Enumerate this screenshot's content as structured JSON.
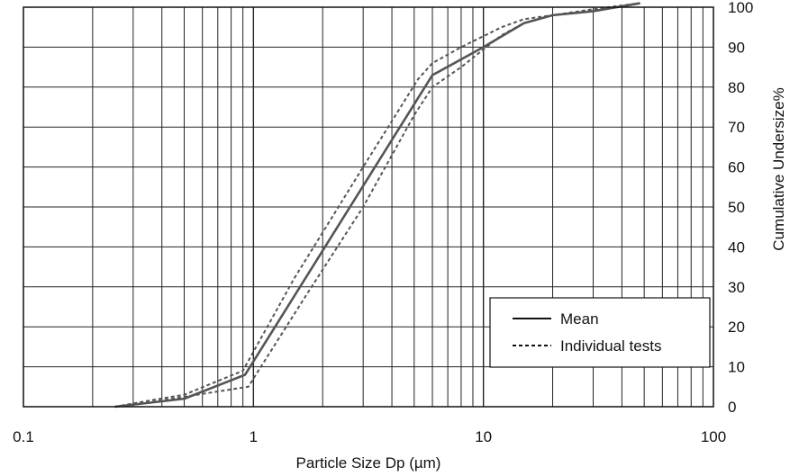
{
  "chart_data": {
    "type": "line",
    "x_scale": "log",
    "xlim": [
      0.1,
      100
    ],
    "ylim": [
      0,
      100
    ],
    "grid": true,
    "legend_position": "bottom-right",
    "title": "",
    "xlabel": "Particle Size  Dp (µm)",
    "ylabel": "Cumulative Undersize%",
    "x_tick_labels": [
      "0.1",
      "1",
      "10",
      "100"
    ],
    "x_tick_values": [
      0.1,
      1,
      10,
      100
    ],
    "y_tick_labels": [
      "0",
      "10",
      "20",
      "30",
      "40",
      "50",
      "60",
      "70",
      "80",
      "90",
      "100"
    ],
    "y_tick_values": [
      0,
      10,
      20,
      30,
      40,
      50,
      60,
      70,
      80,
      90,
      100
    ],
    "colors": {
      "mean": "#555555",
      "individual": "#555555",
      "grid": "#222222"
    },
    "series": [
      {
        "name": "Mean",
        "style": "solid",
        "x": [
          0.25,
          0.5,
          0.92,
          6,
          10,
          15,
          20,
          30,
          48
        ],
        "y": [
          0,
          2,
          8,
          83,
          90,
          96,
          98,
          99,
          101
        ]
      },
      {
        "style": "dashed",
        "x": [
          0.25,
          0.35,
          0.5,
          0.9,
          1.5,
          3,
          5.2,
          6,
          8,
          12,
          15,
          20,
          30,
          48
        ],
        "y": [
          0,
          1.5,
          3,
          9,
          32,
          60,
          82,
          86,
          90,
          95,
          97,
          98,
          99.5,
          101
        ]
      },
      {
        "style": "dashed",
        "x": [
          0.25,
          0.35,
          0.5,
          0.95,
          1.7,
          3,
          5,
          6,
          8,
          12,
          15,
          20,
          30,
          48
        ],
        "y": [
          0,
          1,
          2.5,
          5,
          28,
          50,
          73,
          80,
          85,
          93,
          96,
          98,
          99,
          101
        ]
      }
    ],
    "legend": [
      {
        "label": "Mean",
        "style": "solid"
      },
      {
        "label": "Individual tests",
        "style": "dashed"
      }
    ]
  }
}
